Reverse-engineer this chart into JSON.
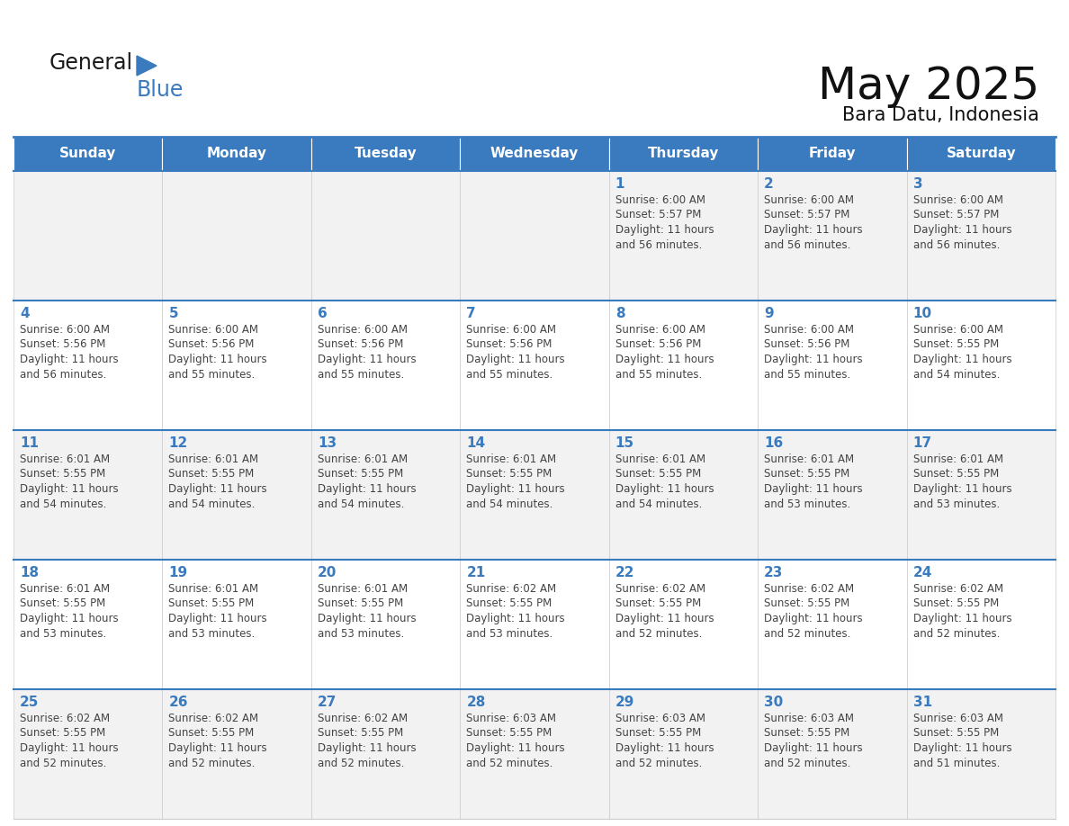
{
  "title": "May 2025",
  "subtitle": "Bara Datu, Indonesia",
  "header_color": "#3a7abf",
  "header_text_color": "#ffffff",
  "row_bg_even": "#f2f2f2",
  "row_bg_odd": "#ffffff",
  "day_number_color": "#3a7abf",
  "text_color": "#444444",
  "separator_color": "#3a7abf",
  "grid_color": "#cccccc",
  "days_of_week": [
    "Sunday",
    "Monday",
    "Tuesday",
    "Wednesday",
    "Thursday",
    "Friday",
    "Saturday"
  ],
  "calendar_data": [
    [
      {
        "day": 0,
        "info": ""
      },
      {
        "day": 0,
        "info": ""
      },
      {
        "day": 0,
        "info": ""
      },
      {
        "day": 0,
        "info": ""
      },
      {
        "day": 1,
        "info": "Sunrise: 6:00 AM\nSunset: 5:57 PM\nDaylight: 11 hours\nand 56 minutes."
      },
      {
        "day": 2,
        "info": "Sunrise: 6:00 AM\nSunset: 5:57 PM\nDaylight: 11 hours\nand 56 minutes."
      },
      {
        "day": 3,
        "info": "Sunrise: 6:00 AM\nSunset: 5:57 PM\nDaylight: 11 hours\nand 56 minutes."
      }
    ],
    [
      {
        "day": 4,
        "info": "Sunrise: 6:00 AM\nSunset: 5:56 PM\nDaylight: 11 hours\nand 56 minutes."
      },
      {
        "day": 5,
        "info": "Sunrise: 6:00 AM\nSunset: 5:56 PM\nDaylight: 11 hours\nand 55 minutes."
      },
      {
        "day": 6,
        "info": "Sunrise: 6:00 AM\nSunset: 5:56 PM\nDaylight: 11 hours\nand 55 minutes."
      },
      {
        "day": 7,
        "info": "Sunrise: 6:00 AM\nSunset: 5:56 PM\nDaylight: 11 hours\nand 55 minutes."
      },
      {
        "day": 8,
        "info": "Sunrise: 6:00 AM\nSunset: 5:56 PM\nDaylight: 11 hours\nand 55 minutes."
      },
      {
        "day": 9,
        "info": "Sunrise: 6:00 AM\nSunset: 5:56 PM\nDaylight: 11 hours\nand 55 minutes."
      },
      {
        "day": 10,
        "info": "Sunrise: 6:00 AM\nSunset: 5:55 PM\nDaylight: 11 hours\nand 54 minutes."
      }
    ],
    [
      {
        "day": 11,
        "info": "Sunrise: 6:01 AM\nSunset: 5:55 PM\nDaylight: 11 hours\nand 54 minutes."
      },
      {
        "day": 12,
        "info": "Sunrise: 6:01 AM\nSunset: 5:55 PM\nDaylight: 11 hours\nand 54 minutes."
      },
      {
        "day": 13,
        "info": "Sunrise: 6:01 AM\nSunset: 5:55 PM\nDaylight: 11 hours\nand 54 minutes."
      },
      {
        "day": 14,
        "info": "Sunrise: 6:01 AM\nSunset: 5:55 PM\nDaylight: 11 hours\nand 54 minutes."
      },
      {
        "day": 15,
        "info": "Sunrise: 6:01 AM\nSunset: 5:55 PM\nDaylight: 11 hours\nand 54 minutes."
      },
      {
        "day": 16,
        "info": "Sunrise: 6:01 AM\nSunset: 5:55 PM\nDaylight: 11 hours\nand 53 minutes."
      },
      {
        "day": 17,
        "info": "Sunrise: 6:01 AM\nSunset: 5:55 PM\nDaylight: 11 hours\nand 53 minutes."
      }
    ],
    [
      {
        "day": 18,
        "info": "Sunrise: 6:01 AM\nSunset: 5:55 PM\nDaylight: 11 hours\nand 53 minutes."
      },
      {
        "day": 19,
        "info": "Sunrise: 6:01 AM\nSunset: 5:55 PM\nDaylight: 11 hours\nand 53 minutes."
      },
      {
        "day": 20,
        "info": "Sunrise: 6:01 AM\nSunset: 5:55 PM\nDaylight: 11 hours\nand 53 minutes."
      },
      {
        "day": 21,
        "info": "Sunrise: 6:02 AM\nSunset: 5:55 PM\nDaylight: 11 hours\nand 53 minutes."
      },
      {
        "day": 22,
        "info": "Sunrise: 6:02 AM\nSunset: 5:55 PM\nDaylight: 11 hours\nand 52 minutes."
      },
      {
        "day": 23,
        "info": "Sunrise: 6:02 AM\nSunset: 5:55 PM\nDaylight: 11 hours\nand 52 minutes."
      },
      {
        "day": 24,
        "info": "Sunrise: 6:02 AM\nSunset: 5:55 PM\nDaylight: 11 hours\nand 52 minutes."
      }
    ],
    [
      {
        "day": 25,
        "info": "Sunrise: 6:02 AM\nSunset: 5:55 PM\nDaylight: 11 hours\nand 52 minutes."
      },
      {
        "day": 26,
        "info": "Sunrise: 6:02 AM\nSunset: 5:55 PM\nDaylight: 11 hours\nand 52 minutes."
      },
      {
        "day": 27,
        "info": "Sunrise: 6:02 AM\nSunset: 5:55 PM\nDaylight: 11 hours\nand 52 minutes."
      },
      {
        "day": 28,
        "info": "Sunrise: 6:03 AM\nSunset: 5:55 PM\nDaylight: 11 hours\nand 52 minutes."
      },
      {
        "day": 29,
        "info": "Sunrise: 6:03 AM\nSunset: 5:55 PM\nDaylight: 11 hours\nand 52 minutes."
      },
      {
        "day": 30,
        "info": "Sunrise: 6:03 AM\nSunset: 5:55 PM\nDaylight: 11 hours\nand 52 minutes."
      },
      {
        "day": 31,
        "info": "Sunrise: 6:03 AM\nSunset: 5:55 PM\nDaylight: 11 hours\nand 51 minutes."
      }
    ]
  ],
  "logo_text1": "General",
  "logo_text2": "Blue",
  "logo_color1": "#1a1a1a",
  "logo_color2": "#3a7abf",
  "title_fontsize": 36,
  "subtitle_fontsize": 15,
  "header_fontsize": 11,
  "day_num_fontsize": 11,
  "cell_text_fontsize": 8.5
}
